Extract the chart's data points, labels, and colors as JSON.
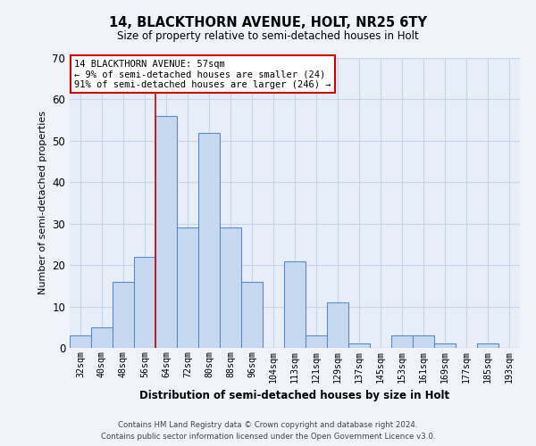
{
  "title": "14, BLACKTHORN AVENUE, HOLT, NR25 6TY",
  "subtitle": "Size of property relative to semi-detached houses in Holt",
  "xlabel": "Distribution of semi-detached houses by size in Holt",
  "ylabel": "Number of semi-detached properties",
  "bar_labels": [
    "32sqm",
    "40sqm",
    "48sqm",
    "56sqm",
    "64sqm",
    "72sqm",
    "80sqm",
    "88sqm",
    "96sqm",
    "104sqm",
    "113sqm",
    "121sqm",
    "129sqm",
    "137sqm",
    "145sqm",
    "153sqm",
    "161sqm",
    "169sqm",
    "177sqm",
    "185sqm",
    "193sqm"
  ],
  "bar_values": [
    3,
    5,
    16,
    22,
    56,
    29,
    52,
    29,
    16,
    0,
    21,
    3,
    11,
    1,
    0,
    3,
    3,
    1,
    0,
    1,
    0
  ],
  "bar_color": "#c6d9f1",
  "bar_edge_color": "#5b8cc8",
  "ylim": [
    0,
    70
  ],
  "yticks": [
    0,
    10,
    20,
    30,
    40,
    50,
    60,
    70
  ],
  "annotation_line1": "14 BLACKTHORN AVENUE: 57sqm",
  "annotation_line2": "← 9% of semi-detached houses are smaller (24)",
  "annotation_line3": "91% of semi-detached houses are larger (246) →",
  "annotation_box_color": "#ffffff",
  "annotation_box_edge_color": "#cc0000",
  "property_bar_index": 3,
  "background_color": "#f0f4fa",
  "plot_bg_color": "#e8eef8",
  "grid_color": "#c8d4e8",
  "footer_line1": "Contains HM Land Registry data © Crown copyright and database right 2024.",
  "footer_line2": "Contains public sector information licensed under the Open Government Licence v3.0."
}
